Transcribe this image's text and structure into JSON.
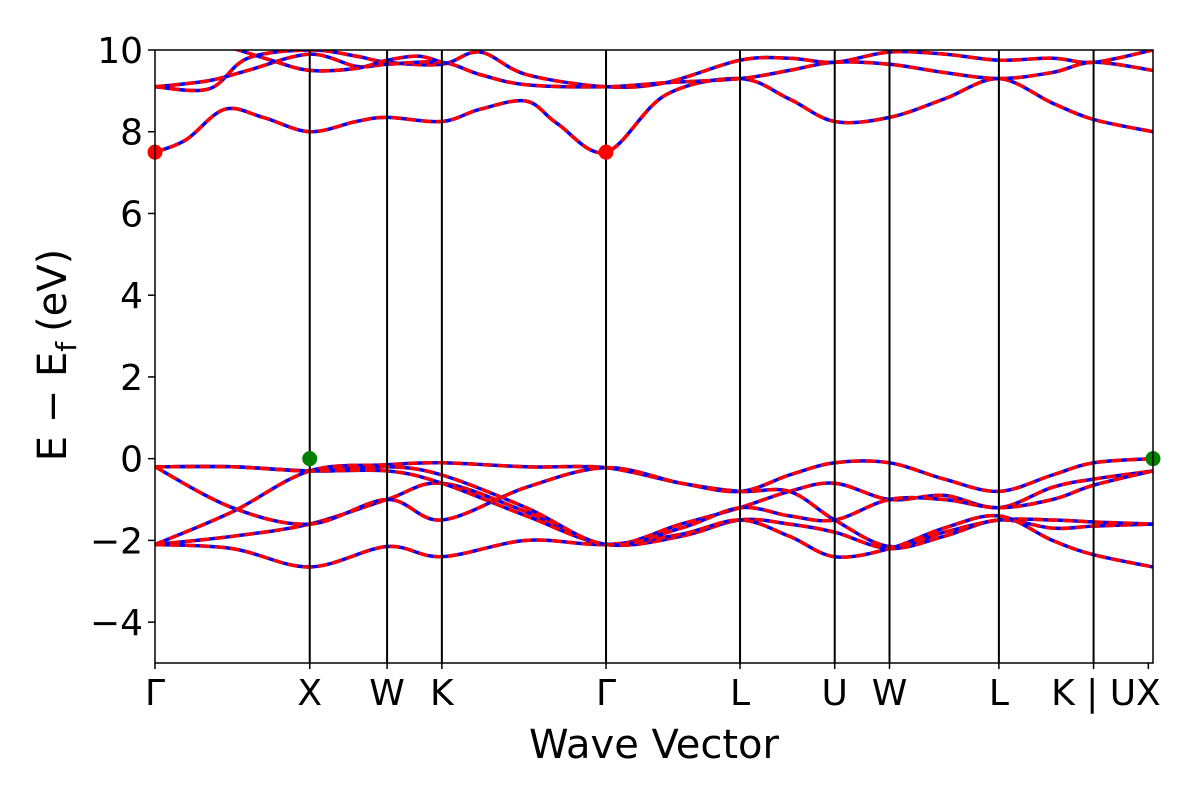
{
  "chart_data": {
    "type": "line",
    "title": "",
    "xlabel": "Wave Vector",
    "ylabel": "E − E",
    "ylabel_sub": "f",
    "ylabel_unit": "(eV)",
    "ylim": [
      -5,
      10
    ],
    "yticks": [
      -4,
      -2,
      0,
      2,
      4,
      6,
      8,
      10
    ],
    "ytick_labels": [
      "−4",
      "−2",
      "0",
      "2",
      "4",
      "6",
      "8",
      "10"
    ],
    "xlim": [
      0,
      6.45
    ],
    "kpoints": [
      {
        "label": "Γ",
        "x": 0
      },
      {
        "label": "X",
        "x": 1.0
      },
      {
        "label": "W",
        "x": 1.5
      },
      {
        "label": "K",
        "x": 1.854
      },
      {
        "label": "Γ",
        "x": 2.915
      },
      {
        "label": "L",
        "x": 3.781
      },
      {
        "label": "U",
        "x": 4.393
      },
      {
        "label": "W",
        "x": 4.747
      },
      {
        "label": "L",
        "x": 5.454
      },
      {
        "label": "K | U",
        "x": 6.066
      },
      {
        "label": "X",
        "x": 6.42
      }
    ],
    "spin_colors": {
      "up": "#0000ff",
      "down": "#ff0000"
    },
    "band_extrema": [
      {
        "name": "CBM",
        "color": "#ff0000",
        "points": [
          {
            "x": 0,
            "y": 7.5
          },
          {
            "x": 2.915,
            "y": 7.5
          }
        ]
      },
      {
        "name": "VBM",
        "color": "#008000",
        "points": [
          {
            "x": 1.0,
            "y": 0.0
          },
          {
            "x": 6.45,
            "y": 0.0
          }
        ]
      }
    ],
    "series": [
      {
        "values": [
          [
            0,
            -2.1
          ],
          [
            0.5,
            -1.9
          ],
          [
            1.0,
            -1.6
          ],
          [
            1.5,
            -1.0
          ],
          [
            1.854,
            -0.6
          ],
          [
            2.4,
            -1.3
          ],
          [
            2.915,
            -2.1
          ],
          [
            3.4,
            -1.6
          ],
          [
            3.781,
            -1.2
          ],
          [
            4.1,
            -0.8
          ],
          [
            4.393,
            -0.6
          ],
          [
            4.747,
            -1.0
          ],
          [
            5.1,
            -0.9
          ],
          [
            5.454,
            -1.2
          ],
          [
            5.8,
            -0.7
          ],
          [
            6.066,
            -0.5
          ],
          [
            6.45,
            -0.3
          ]
        ]
      },
      {
        "values": [
          [
            0,
            -2.1
          ],
          [
            0.5,
            -1.3
          ],
          [
            1.0,
            -0.3
          ],
          [
            1.5,
            -0.15
          ],
          [
            1.854,
            -0.1
          ],
          [
            2.4,
            -0.2
          ],
          [
            2.915,
            -0.22
          ],
          [
            3.4,
            -0.6
          ],
          [
            3.781,
            -0.8
          ],
          [
            4.1,
            -0.4
          ],
          [
            4.393,
            -0.1
          ],
          [
            4.747,
            -0.1
          ],
          [
            5.1,
            -0.5
          ],
          [
            5.454,
            -0.8
          ],
          [
            5.8,
            -0.4
          ],
          [
            6.066,
            -0.1
          ],
          [
            6.45,
            0.0
          ]
        ]
      },
      {
        "values": [
          [
            0,
            -0.2
          ],
          [
            0.5,
            -0.2
          ],
          [
            1.0,
            -0.3
          ],
          [
            1.5,
            -0.3
          ],
          [
            1.854,
            -0.6
          ],
          [
            2.4,
            -1.4
          ],
          [
            2.915,
            -2.1
          ],
          [
            3.4,
            -1.9
          ],
          [
            3.781,
            -1.5
          ],
          [
            4.1,
            -1.6
          ],
          [
            4.393,
            -1.8
          ],
          [
            4.747,
            -2.2
          ],
          [
            5.1,
            -1.9
          ],
          [
            5.454,
            -1.5
          ],
          [
            5.8,
            -1.7
          ],
          [
            6.066,
            -1.65
          ],
          [
            6.45,
            -1.6
          ]
        ]
      },
      {
        "values": [
          [
            0,
            -0.2
          ],
          [
            0.5,
            -1.2
          ],
          [
            1.0,
            -1.6
          ],
          [
            1.5,
            -1.0
          ],
          [
            1.854,
            -1.5
          ],
          [
            2.4,
            -0.7
          ],
          [
            2.915,
            -0.22
          ],
          [
            3.4,
            -0.6
          ],
          [
            3.781,
            -0.8
          ],
          [
            4.1,
            -0.8
          ],
          [
            4.393,
            -1.5
          ],
          [
            4.747,
            -2.15
          ],
          [
            5.1,
            -1.8
          ],
          [
            5.454,
            -1.5
          ],
          [
            5.8,
            -1.5
          ],
          [
            6.066,
            -1.55
          ],
          [
            6.45,
            -1.6
          ]
        ]
      },
      {
        "values": [
          [
            0,
            -2.1
          ],
          [
            0.5,
            -2.2
          ],
          [
            1.0,
            -2.65
          ],
          [
            1.5,
            -2.15
          ],
          [
            1.854,
            -2.4
          ],
          [
            2.4,
            -2.0
          ],
          [
            2.915,
            -2.1
          ],
          [
            3.4,
            -1.85
          ],
          [
            3.781,
            -1.5
          ],
          [
            4.1,
            -1.9
          ],
          [
            4.393,
            -2.4
          ],
          [
            4.747,
            -2.2
          ],
          [
            5.1,
            -1.7
          ],
          [
            5.454,
            -1.4
          ],
          [
            5.8,
            -2.0
          ],
          [
            6.066,
            -2.35
          ],
          [
            6.45,
            -2.65
          ]
        ]
      },
      {
        "values": [
          [
            0,
            -0.2
          ],
          [
            0.5,
            -0.2
          ],
          [
            1.0,
            -0.3
          ],
          [
            1.5,
            -0.2
          ],
          [
            1.854,
            -0.4
          ],
          [
            2.4,
            -1.2
          ],
          [
            2.915,
            -2.1
          ],
          [
            3.4,
            -1.7
          ],
          [
            3.781,
            -1.2
          ],
          [
            4.1,
            -1.4
          ],
          [
            4.393,
            -1.5
          ],
          [
            4.747,
            -1.0
          ],
          [
            5.1,
            -1.0
          ],
          [
            5.454,
            -1.2
          ],
          [
            5.8,
            -1.0
          ],
          [
            6.066,
            -0.65
          ],
          [
            6.45,
            -0.3
          ]
        ]
      },
      {
        "values": [
          [
            0,
            7.5
          ],
          [
            0.2,
            7.8
          ],
          [
            0.45,
            8.55
          ],
          [
            0.7,
            8.35
          ],
          [
            1.0,
            8.0
          ],
          [
            1.3,
            8.25
          ],
          [
            1.5,
            8.35
          ],
          [
            1.854,
            8.25
          ],
          [
            2.1,
            8.55
          ],
          [
            2.4,
            8.75
          ],
          [
            2.6,
            8.2
          ],
          [
            2.915,
            7.5
          ],
          [
            3.3,
            8.9
          ],
          [
            3.781,
            9.3
          ],
          [
            4.1,
            8.8
          ],
          [
            4.393,
            8.25
          ],
          [
            4.747,
            8.35
          ],
          [
            5.1,
            8.8
          ],
          [
            5.454,
            9.3
          ],
          [
            5.8,
            8.7
          ],
          [
            6.066,
            8.3
          ],
          [
            6.45,
            8.0
          ]
        ]
      },
      {
        "values": [
          [
            0,
            9.1
          ],
          [
            0.35,
            9.05
          ],
          [
            0.6,
            9.8
          ],
          [
            1.0,
            10.0
          ],
          [
            1.3,
            9.85
          ],
          [
            1.5,
            9.7
          ],
          [
            1.854,
            9.65
          ],
          [
            2.1,
            9.95
          ],
          [
            2.4,
            9.4
          ],
          [
            2.915,
            9.1
          ],
          [
            3.3,
            9.2
          ],
          [
            3.781,
            9.75
          ],
          [
            4.1,
            9.8
          ],
          [
            4.393,
            9.7
          ],
          [
            4.747,
            9.95
          ],
          [
            5.1,
            9.9
          ],
          [
            5.454,
            9.75
          ],
          [
            5.8,
            9.8
          ],
          [
            6.066,
            9.7
          ],
          [
            6.45,
            10.0
          ]
        ]
      },
      {
        "values": [
          [
            0,
            9.1
          ],
          [
            0.35,
            9.25
          ],
          [
            0.6,
            9.5
          ],
          [
            1.0,
            9.9
          ],
          [
            1.3,
            9.6
          ],
          [
            1.5,
            9.65
          ],
          [
            1.854,
            9.7
          ],
          [
            2.1,
            9.4
          ],
          [
            2.4,
            9.15
          ],
          [
            2.915,
            9.1
          ],
          [
            3.3,
            9.2
          ],
          [
            3.781,
            9.3
          ],
          [
            4.1,
            9.5
          ],
          [
            4.393,
            9.7
          ],
          [
            4.747,
            9.65
          ],
          [
            5.1,
            9.45
          ],
          [
            5.454,
            9.3
          ],
          [
            5.8,
            9.45
          ],
          [
            6.066,
            9.7
          ],
          [
            6.45,
            9.5
          ]
        ]
      },
      {
        "values": [
          [
            0.5,
            10.05
          ],
          [
            0.75,
            9.75
          ],
          [
            1.0,
            9.5
          ],
          [
            1.3,
            9.55
          ],
          [
            1.5,
            9.75
          ],
          [
            1.7,
            9.85
          ],
          [
            1.854,
            9.7
          ]
        ]
      }
    ]
  }
}
